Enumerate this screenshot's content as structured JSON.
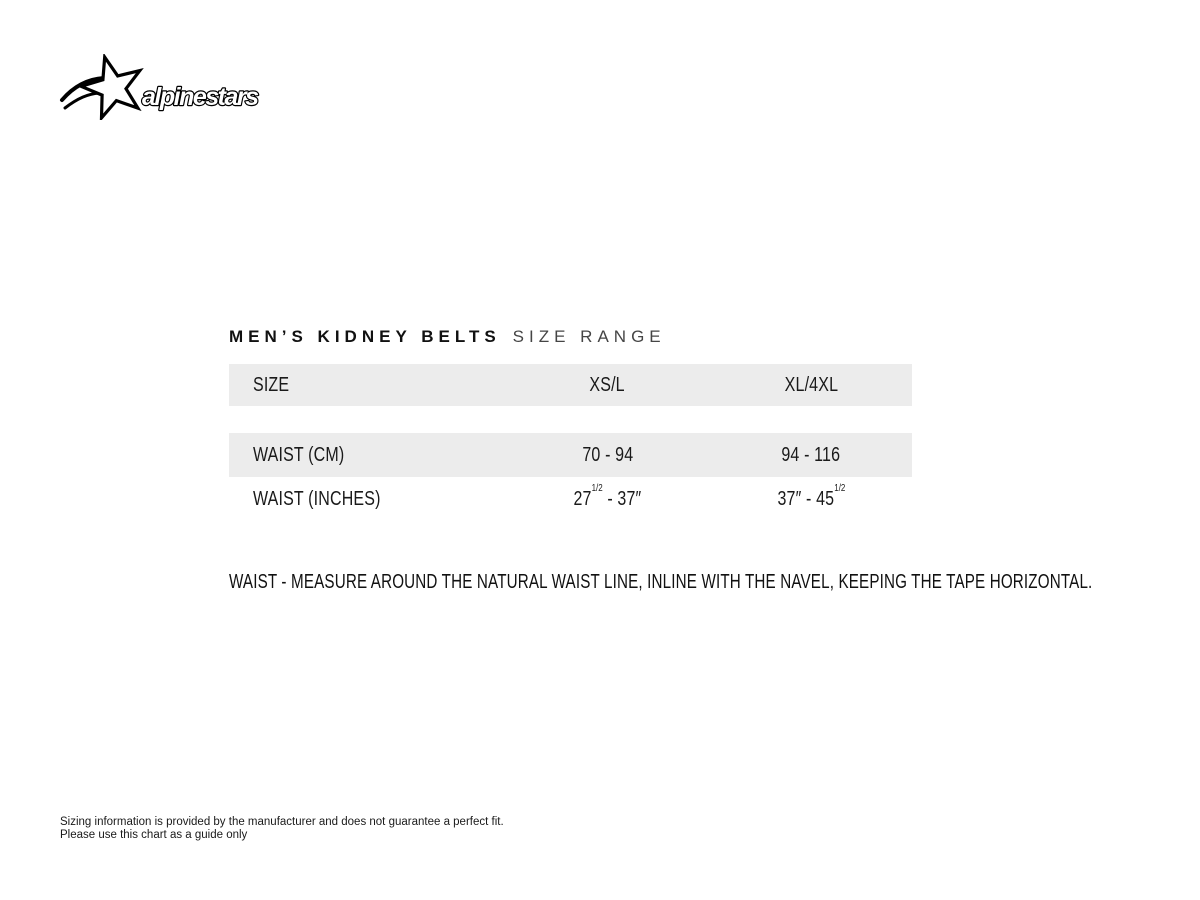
{
  "logo": {
    "brand": "alpinestars"
  },
  "title": {
    "main": "MEN’S KIDNEY BELTS",
    "sub": "SIZE RANGE"
  },
  "table": {
    "row_bg": "#ececec",
    "headers": [
      "SIZE",
      "XS/L",
      "XL/4XL"
    ],
    "rows": [
      {
        "label": "WAIST (CM)",
        "values": [
          "70 - 94",
          "94 - 116"
        ]
      },
      {
        "label": "WAIST (INCHES)",
        "values": [
          "27^{1/2} - 37″",
          "37″ - 45^{1/2}"
        ]
      }
    ]
  },
  "note": "WAIST - MEASURE AROUND THE NATURAL WAIST LINE, INLINE WITH THE NAVEL, KEEPING THE TAPE HORIZONTAL.",
  "footer": {
    "line1": "Sizing information is provided by the manufacturer and does not guarantee a perfect fit.",
    "line2": "Please use this chart as a guide only"
  },
  "chart_data": {
    "type": "table",
    "title": "MEN'S KIDNEY BELTS SIZE RANGE",
    "columns": [
      "SIZE",
      "XS/L",
      "XL/4XL"
    ],
    "rows": [
      [
        "WAIST (CM)",
        "70 - 94",
        "94 - 116"
      ],
      [
        "WAIST (INCHES)",
        "27 1/2 - 37\"",
        "37\" - 45 1/2"
      ]
    ],
    "note": "WAIST - MEASURE AROUND THE NATURAL WAIST LINE, INLINE WITH THE NAVEL, KEEPING THE TAPE HORIZONTAL."
  }
}
